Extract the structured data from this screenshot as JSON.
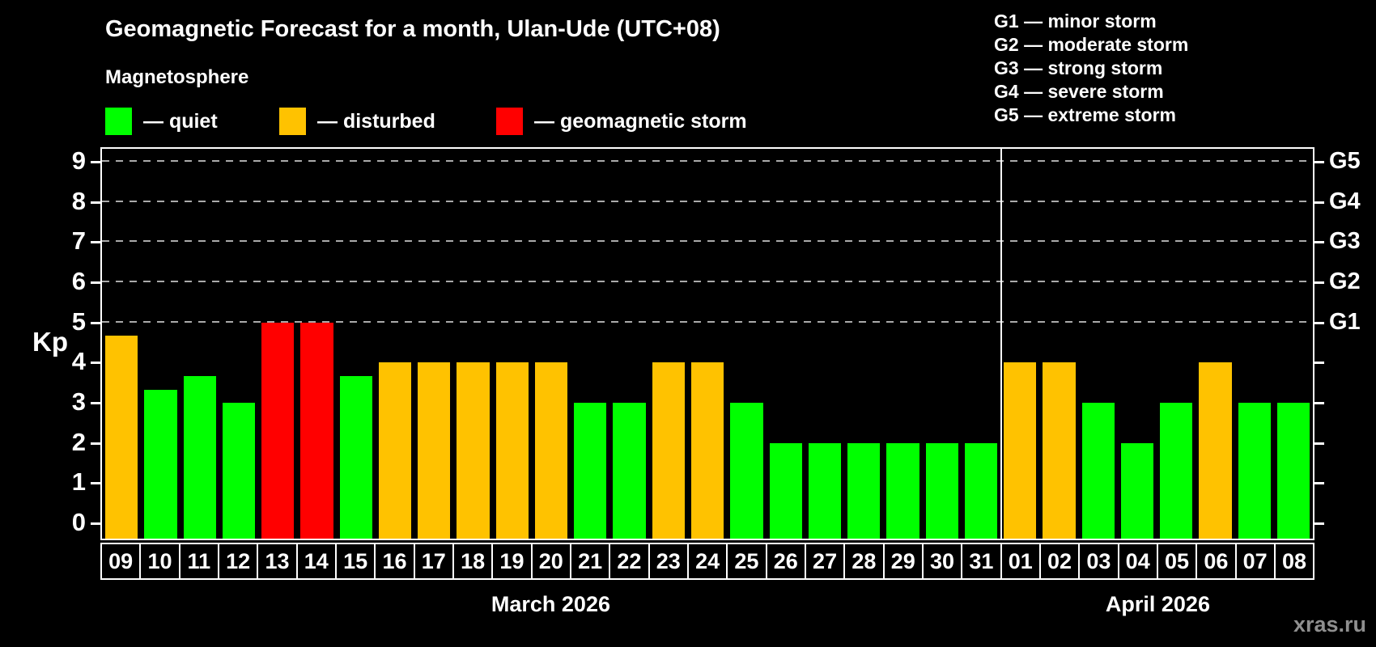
{
  "title": "Geomagnetic Forecast for a month, Ulan-Ude (UTC+08)",
  "magnetosphere_label": "Magnetosphere",
  "legend": {
    "quiet": "— quiet",
    "disturbed": "— disturbed",
    "storm": "— geomagnetic storm"
  },
  "g_legend": [
    "G1 — minor storm",
    "G2 — moderate storm",
    "G3 — strong storm",
    "G4 — severe storm",
    "G5 — extreme storm"
  ],
  "axis": {
    "kp_label": "Kp",
    "left_ticks": [
      "0",
      "1",
      "2",
      "3",
      "4",
      "5",
      "6",
      "7",
      "8",
      "9"
    ],
    "right_labels": [
      {
        "kp": 5,
        "label": "G1"
      },
      {
        "kp": 6,
        "label": "G2"
      },
      {
        "kp": 7,
        "label": "G3"
      },
      {
        "kp": 8,
        "label": "G4"
      },
      {
        "kp": 9,
        "label": "G5"
      }
    ]
  },
  "months": [
    "March 2026",
    "April 2026"
  ],
  "watermark": "xras.ru",
  "colors": {
    "quiet": "#00ff00",
    "disturbed": "#ffc200",
    "storm": "#ff0000",
    "grid": "#aaaaaa"
  },
  "chart_data": {
    "type": "bar",
    "title": "Geomagnetic Forecast for a month, Ulan-Ude (UTC+08)",
    "xlabel": "",
    "ylabel": "Kp",
    "ylim": [
      0,
      9
    ],
    "gridlines_at": [
      5,
      6,
      7,
      8,
      9
    ],
    "grid": true,
    "legend_position": "top-left",
    "categories": [
      "09",
      "10",
      "11",
      "12",
      "13",
      "14",
      "15",
      "16",
      "17",
      "18",
      "19",
      "20",
      "21",
      "22",
      "23",
      "24",
      "25",
      "26",
      "27",
      "28",
      "29",
      "30",
      "31",
      "01",
      "02",
      "03",
      "04",
      "05",
      "06",
      "07",
      "08"
    ],
    "bars": [
      {
        "day": "09",
        "month": "March 2026",
        "kp": 4.67,
        "state": "disturbed"
      },
      {
        "day": "10",
        "month": "March 2026",
        "kp": 3.33,
        "state": "quiet"
      },
      {
        "day": "11",
        "month": "March 2026",
        "kp": 3.67,
        "state": "quiet"
      },
      {
        "day": "12",
        "month": "March 2026",
        "kp": 3.0,
        "state": "quiet"
      },
      {
        "day": "13",
        "month": "March 2026",
        "kp": 5.0,
        "state": "storm"
      },
      {
        "day": "14",
        "month": "March 2026",
        "kp": 5.0,
        "state": "storm"
      },
      {
        "day": "15",
        "month": "March 2026",
        "kp": 3.67,
        "state": "quiet"
      },
      {
        "day": "16",
        "month": "March 2026",
        "kp": 4.0,
        "state": "disturbed"
      },
      {
        "day": "17",
        "month": "March 2026",
        "kp": 4.0,
        "state": "disturbed"
      },
      {
        "day": "18",
        "month": "March 2026",
        "kp": 4.0,
        "state": "disturbed"
      },
      {
        "day": "19",
        "month": "March 2026",
        "kp": 4.0,
        "state": "disturbed"
      },
      {
        "day": "20",
        "month": "March 2026",
        "kp": 4.0,
        "state": "disturbed"
      },
      {
        "day": "21",
        "month": "March 2026",
        "kp": 3.0,
        "state": "quiet"
      },
      {
        "day": "22",
        "month": "March 2026",
        "kp": 3.0,
        "state": "quiet"
      },
      {
        "day": "23",
        "month": "March 2026",
        "kp": 4.0,
        "state": "disturbed"
      },
      {
        "day": "24",
        "month": "March 2026",
        "kp": 4.0,
        "state": "disturbed"
      },
      {
        "day": "25",
        "month": "March 2026",
        "kp": 3.0,
        "state": "quiet"
      },
      {
        "day": "26",
        "month": "March 2026",
        "kp": 2.0,
        "state": "quiet"
      },
      {
        "day": "27",
        "month": "March 2026",
        "kp": 2.0,
        "state": "quiet"
      },
      {
        "day": "28",
        "month": "March 2026",
        "kp": 2.0,
        "state": "quiet"
      },
      {
        "day": "29",
        "month": "March 2026",
        "kp": 2.0,
        "state": "quiet"
      },
      {
        "day": "30",
        "month": "March 2026",
        "kp": 2.0,
        "state": "quiet"
      },
      {
        "day": "31",
        "month": "March 2026",
        "kp": 2.0,
        "state": "quiet"
      },
      {
        "day": "01",
        "month": "April 2026",
        "kp": 4.0,
        "state": "disturbed"
      },
      {
        "day": "02",
        "month": "April 2026",
        "kp": 4.0,
        "state": "disturbed"
      },
      {
        "day": "03",
        "month": "April 2026",
        "kp": 3.0,
        "state": "quiet"
      },
      {
        "day": "04",
        "month": "April 2026",
        "kp": 2.0,
        "state": "quiet"
      },
      {
        "day": "05",
        "month": "April 2026",
        "kp": 3.0,
        "state": "quiet"
      },
      {
        "day": "06",
        "month": "April 2026",
        "kp": 4.0,
        "state": "disturbed"
      },
      {
        "day": "07",
        "month": "April 2026",
        "kp": 3.0,
        "state": "quiet"
      },
      {
        "day": "08",
        "month": "April 2026",
        "kp": 3.0,
        "state": "quiet"
      }
    ]
  }
}
